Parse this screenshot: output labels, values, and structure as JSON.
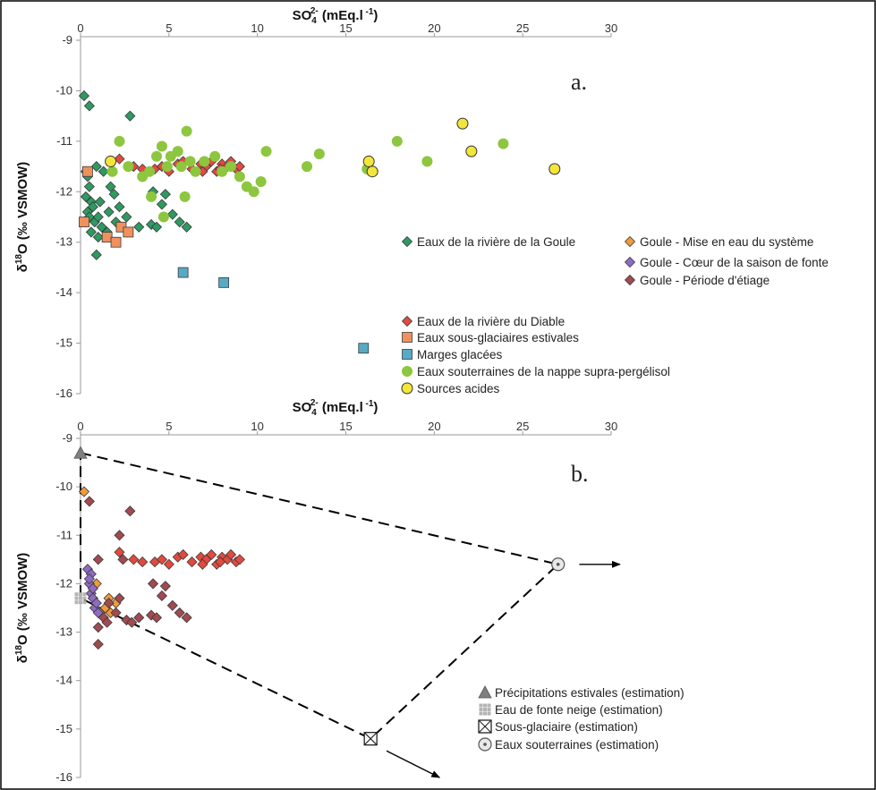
{
  "figure": {
    "background": "#ffffff",
    "frame": "#000000"
  },
  "colors": {
    "goule": "#2e9a62",
    "goule_mise": "#f29a3a",
    "goule_coeur": "#8e6cc2",
    "goule_etiage": "#a14a50",
    "diable": "#e24a3f",
    "sousglac": "#f0915d",
    "marges": "#58a9c4",
    "nappe": "#8dc63f",
    "acides": "#f3e63b",
    "precip": "#808080",
    "neige": "#b4b4b4",
    "sousglac_est": "#ffffff",
    "eaux_est": "#e8e8e8"
  },
  "chart_data": [
    {
      "panel": "a.",
      "type": "scatter",
      "xlabel": "SO4 2- (mEq.l -1)",
      "xlabel_parts": {
        "main": "SO",
        "sub": "4",
        "sup": "2-",
        "unit": "(mEq.l",
        "unit_sup": "-1",
        "close": ")"
      },
      "ylabel": "δ18O (‰ VSMOW)",
      "ylabel_parts": {
        "delta": "δ",
        "sup": "18",
        "rest": "O (‰ VSMOW)"
      },
      "xlim": [
        0,
        30
      ],
      "ylim": [
        -16,
        -9
      ],
      "x_axis_position": "top",
      "xticks": [
        "0",
        "5",
        "10",
        "15",
        "20",
        "25",
        "30"
      ],
      "yticks": [
        "-9",
        "-10",
        "-11",
        "-12",
        "-13",
        "-14",
        "-15",
        "-16"
      ],
      "grid": false,
      "series": [
        {
          "name": "Eaux de la rivière de la Goule",
          "marker": "diamond",
          "color_key": "goule",
          "points": [
            [
              0.2,
              -10.1
            ],
            [
              0.5,
              -10.3
            ],
            [
              0.3,
              -11.6
            ],
            [
              0.4,
              -11.7
            ],
            [
              0.5,
              -11.9
            ],
            [
              0.3,
              -12.1
            ],
            [
              0.6,
              -12.2
            ],
            [
              0.4,
              -12.4
            ],
            [
              0.5,
              -12.5
            ],
            [
              0.7,
              -12.3
            ],
            [
              0.8,
              -12.6
            ],
            [
              0.6,
              -12.8
            ],
            [
              1.0,
              -12.5
            ],
            [
              1.2,
              -12.7
            ],
            [
              1.0,
              -12.9
            ],
            [
              0.9,
              -13.25
            ],
            [
              1.5,
              -12.8
            ],
            [
              1.6,
              -12.4
            ],
            [
              2.0,
              -12.6
            ],
            [
              2.2,
              -12.3
            ],
            [
              1.1,
              -12.2
            ],
            [
              0.9,
              -11.5
            ],
            [
              1.3,
              -11.6
            ],
            [
              1.7,
              -11.9
            ],
            [
              2.2,
              -11.0
            ],
            [
              1.9,
              -12.05
            ],
            [
              2.6,
              -12.5
            ],
            [
              2.8,
              -10.5
            ],
            [
              3.3,
              -12.7
            ],
            [
              4.0,
              -12.65
            ],
            [
              4.1,
              -12.0
            ],
            [
              4.6,
              -12.25
            ],
            [
              4.8,
              -12.05
            ],
            [
              5.2,
              -12.45
            ],
            [
              5.6,
              -12.6
            ],
            [
              6.0,
              -12.7
            ],
            [
              4.3,
              -12.7
            ]
          ]
        },
        {
          "name": "Eaux de la rivière du Diable",
          "marker": "diamond",
          "color_key": "diable",
          "points": [
            [
              2.2,
              -11.35
            ],
            [
              3.0,
              -11.5
            ],
            [
              3.5,
              -11.55
            ],
            [
              4.2,
              -11.55
            ],
            [
              4.6,
              -11.5
            ],
            [
              5.0,
              -11.6
            ],
            [
              5.5,
              -11.45
            ],
            [
              5.8,
              -11.4
            ],
            [
              6.3,
              -11.55
            ],
            [
              6.8,
              -11.45
            ],
            [
              7.1,
              -11.5
            ],
            [
              7.4,
              -11.4
            ],
            [
              7.7,
              -11.6
            ],
            [
              8.0,
              -11.45
            ],
            [
              8.3,
              -11.5
            ],
            [
              8.5,
              -11.4
            ],
            [
              8.8,
              -11.55
            ],
            [
              9.0,
              -11.5
            ],
            [
              7.9,
              -11.55
            ],
            [
              6.9,
              -11.6
            ]
          ]
        },
        {
          "name": "Eaux sous-glaciaires estivales",
          "marker": "square",
          "color_key": "sousglac",
          "points": [
            [
              0.2,
              -12.6
            ],
            [
              0.4,
              -11.6
            ],
            [
              1.5,
              -12.9
            ],
            [
              2.0,
              -13.0
            ],
            [
              2.3,
              -12.7
            ],
            [
              2.7,
              -12.8
            ]
          ]
        },
        {
          "name": "Marges glacées",
          "marker": "square",
          "color_key": "marges",
          "points": [
            [
              5.8,
              -13.6
            ],
            [
              8.1,
              -13.8
            ],
            [
              16.0,
              -15.1
            ]
          ]
        },
        {
          "name": "Eaux souterraines de la nappe supra-pergélisol",
          "marker": "circle",
          "color_key": "nappe",
          "points": [
            [
              1.8,
              -11.6
            ],
            [
              2.2,
              -11.0
            ],
            [
              2.7,
              -11.5
            ],
            [
              3.5,
              -11.7
            ],
            [
              3.9,
              -11.6
            ],
            [
              4.0,
              -12.1
            ],
            [
              4.3,
              -11.3
            ],
            [
              4.6,
              -11.1
            ],
            [
              4.9,
              -11.5
            ],
            [
              5.1,
              -11.3
            ],
            [
              5.5,
              -11.2
            ],
            [
              5.7,
              -11.5
            ],
            [
              5.9,
              -12.1
            ],
            [
              6.2,
              -11.4
            ],
            [
              6.5,
              -11.6
            ],
            [
              7.0,
              -11.4
            ],
            [
              7.6,
              -11.3
            ],
            [
              8.0,
              -11.6
            ],
            [
              8.5,
              -11.5
            ],
            [
              9.0,
              -11.7
            ],
            [
              9.4,
              -11.9
            ],
            [
              9.8,
              -12.0
            ],
            [
              10.2,
              -11.8
            ],
            [
              10.5,
              -11.2
            ],
            [
              12.8,
              -11.5
            ],
            [
              13.5,
              -11.25
            ],
            [
              16.2,
              -11.55
            ],
            [
              17.9,
              -11.0
            ],
            [
              19.6,
              -11.4
            ],
            [
              23.9,
              -11.05
            ],
            [
              6.0,
              -10.8
            ],
            [
              4.7,
              -12.5
            ]
          ]
        },
        {
          "name": "Sources acides",
          "marker": "circle",
          "color_key": "acides",
          "points": [
            [
              1.7,
              -11.4
            ],
            [
              16.3,
              -11.4
            ],
            [
              16.5,
              -11.6
            ],
            [
              21.6,
              -10.65
            ],
            [
              22.1,
              -11.2
            ],
            [
              26.8,
              -11.55
            ]
          ]
        }
      ],
      "legend_left": [
        {
          "label": "Eaux de la rivière de la Goule",
          "marker": "diamond",
          "color_key": "goule"
        },
        {
          "label": "Eaux de la rivière du Diable",
          "marker": "diamond",
          "color_key": "diable"
        },
        {
          "label": "Eaux sous-glaciaires estivales",
          "marker": "square",
          "color_key": "sousglac"
        },
        {
          "label": "Marges glacées",
          "marker": "square",
          "color_key": "marges"
        },
        {
          "label": "Eaux souterraines de la nappe supra-pergélisol",
          "marker": "circle",
          "color_key": "nappe"
        },
        {
          "label": "Sources acides",
          "marker": "circle",
          "color_key": "acides"
        }
      ],
      "legend_right": [
        {
          "label": "Goule - Mise en eau du système",
          "marker": "diamond",
          "color_key": "goule_mise"
        },
        {
          "label": "Goule - Cœur de la saison de fonte",
          "marker": "diamond",
          "color_key": "goule_coeur"
        },
        {
          "label": "Goule - Période d'étiage",
          "marker": "diamond",
          "color_key": "goule_etiage"
        }
      ]
    },
    {
      "panel": "b.",
      "type": "scatter",
      "xlabel": "SO4 2- (mEq.l -1)",
      "xlabel_parts": {
        "main": "SO",
        "sub": "4",
        "sup": "2-",
        "unit": "(mEq.l",
        "unit_sup": "-1",
        "close": ")"
      },
      "ylabel": "δ18O (‰ VSMOW)",
      "ylabel_parts": {
        "delta": "δ",
        "sup": "18",
        "rest": "O (‰ VSMOW)"
      },
      "xlim": [
        0,
        30
      ],
      "ylim": [
        -16,
        -9
      ],
      "x_axis_position": "top",
      "xticks": [
        "0",
        "5",
        "10",
        "15",
        "20",
        "25",
        "30"
      ],
      "yticks": [
        "-9",
        "-10",
        "-11",
        "-12",
        "-13",
        "-14",
        "-15",
        "-16"
      ],
      "grid": false,
      "series": [
        {
          "name": "Goule - Mise en eau du système",
          "marker": "diamond",
          "color_key": "goule_mise",
          "points": [
            [
              0.2,
              -10.1
            ],
            [
              1.6,
              -12.3
            ],
            [
              1.4,
              -12.5
            ],
            [
              1.1,
              -12.6
            ],
            [
              0.9,
              -12.0
            ],
            [
              2.0,
              -12.4
            ],
            [
              1.7,
              -12.6
            ]
          ]
        },
        {
          "name": "Goule - Cœur de la saison de fonte",
          "marker": "diamond",
          "color_key": "goule_coeur",
          "points": [
            [
              0.4,
              -11.7
            ],
            [
              0.6,
              -11.8
            ],
            [
              0.5,
              -12.0
            ],
            [
              0.6,
              -12.2
            ],
            [
              0.7,
              -12.3
            ],
            [
              0.8,
              -12.5
            ],
            [
              0.9,
              -12.4
            ],
            [
              0.7,
              -12.1
            ],
            [
              1.0,
              -12.6
            ],
            [
              0.5,
              -11.9
            ]
          ]
        },
        {
          "name": "Goule - Période d'étiage",
          "marker": "diamond",
          "color_key": "goule_etiage",
          "points": [
            [
              0.5,
              -10.3
            ],
            [
              1.0,
              -11.5
            ],
            [
              1.3,
              -12.7
            ],
            [
              1.5,
              -12.8
            ],
            [
              1.6,
              -12.4
            ],
            [
              2.0,
              -12.6
            ],
            [
              1.0,
              -12.9
            ],
            [
              1.0,
              -13.25
            ],
            [
              2.2,
              -12.3
            ],
            [
              2.2,
              -11.0
            ],
            [
              2.8,
              -10.5
            ],
            [
              3.3,
              -12.7
            ],
            [
              4.0,
              -12.65
            ],
            [
              4.1,
              -12.0
            ],
            [
              4.6,
              -12.25
            ],
            [
              4.8,
              -12.05
            ],
            [
              5.2,
              -12.45
            ],
            [
              5.6,
              -12.6
            ],
            [
              6.0,
              -12.7
            ],
            [
              2.4,
              -11.5
            ],
            [
              2.6,
              -12.75
            ],
            [
              2.9,
              -12.8
            ],
            [
              4.3,
              -12.7
            ]
          ]
        },
        {
          "name": "Eaux de la rivière du Diable",
          "marker": "diamond",
          "color_key": "diable",
          "points": [
            [
              2.2,
              -11.35
            ],
            [
              3.0,
              -11.5
            ],
            [
              3.5,
              -11.55
            ],
            [
              4.2,
              -11.55
            ],
            [
              4.6,
              -11.5
            ],
            [
              5.0,
              -11.6
            ],
            [
              5.5,
              -11.45
            ],
            [
              5.8,
              -11.4
            ],
            [
              6.3,
              -11.55
            ],
            [
              6.8,
              -11.45
            ],
            [
              7.1,
              -11.5
            ],
            [
              7.4,
              -11.4
            ],
            [
              7.7,
              -11.6
            ],
            [
              8.0,
              -11.45
            ],
            [
              8.3,
              -11.5
            ],
            [
              8.5,
              -11.4
            ],
            [
              8.8,
              -11.55
            ],
            [
              9.0,
              -11.5
            ],
            [
              7.9,
              -11.55
            ],
            [
              6.9,
              -11.6
            ]
          ]
        }
      ],
      "end_members": [
        {
          "name": "Précipitations estivales (estimation)",
          "marker": "triangle",
          "color_key": "precip",
          "x": 0.0,
          "y": -9.3
        },
        {
          "name": "Eau de fonte neige (estimation)",
          "marker": "grid-square",
          "color_key": "neige",
          "x": 0.0,
          "y": -12.3
        },
        {
          "name": "Sous-glaciaire (estimation)",
          "marker": "crossed-square",
          "color_key": "sousglac_est",
          "x": 16.4,
          "y": -15.2
        },
        {
          "name": "Eaux souterraines (estimation)",
          "marker": "dotted-circle",
          "color_key": "eaux_est",
          "x": 27.0,
          "y": -11.6
        }
      ],
      "mixing_polygon": [
        [
          0.0,
          -9.3
        ],
        [
          27.0,
          -11.6
        ],
        [
          16.4,
          -15.2
        ],
        [
          0.0,
          -12.3
        ]
      ],
      "arrows": [
        {
          "from": [
            28.2,
            -11.6
          ],
          "to": [
            30.5,
            -11.6
          ]
        },
        {
          "from": [
            17.3,
            -15.45
          ],
          "to": [
            20.3,
            -16.0
          ]
        }
      ],
      "legend": [
        {
          "label": "Précipitations estivales (estimation)",
          "marker": "triangle",
          "color_key": "precip"
        },
        {
          "label": "Eau de fonte neige (estimation)",
          "marker": "grid-square",
          "color_key": "neige"
        },
        {
          "label": "Sous-glaciaire (estimation)",
          "marker": "crossed-square",
          "color_key": "sousglac_est"
        },
        {
          "label": "Eaux souterraines (estimation)",
          "marker": "dotted-circle",
          "color_key": "eaux_est"
        }
      ]
    }
  ]
}
